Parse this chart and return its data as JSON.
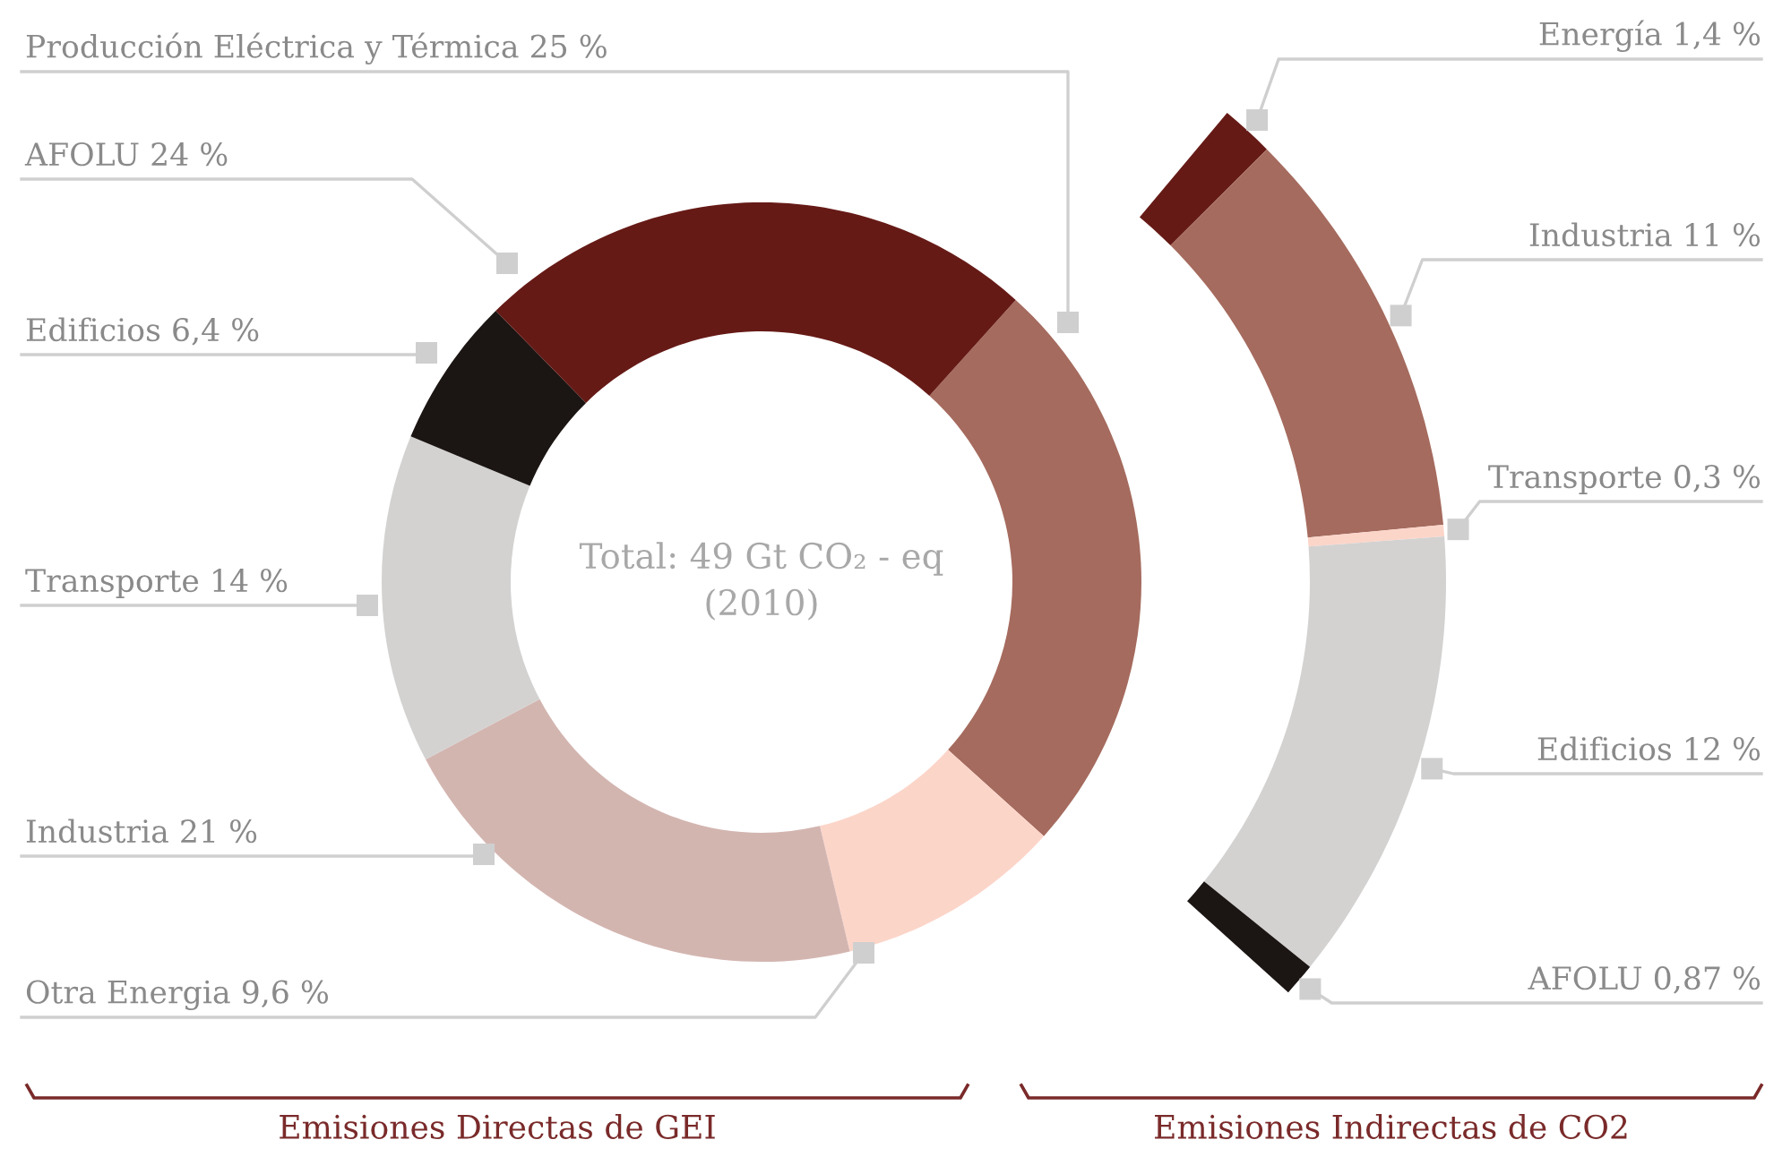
{
  "chart_data": [
    {
      "type": "donut",
      "xlabel": "Emisiones Directas de GEI",
      "annotations": [
        "Total: 49 Gt CO₂ - eq",
        "(2010)"
      ],
      "categories": [
        "Producción Eléctrica y Térmica",
        "Otra Energia",
        "Industria",
        "Transporte",
        "Edificios",
        "AFOLU"
      ],
      "values": [
        25,
        9.6,
        21,
        14,
        6.4,
        24
      ],
      "value_labels": [
        "25 %",
        "9,6 %",
        "21 %",
        "14 %",
        "6,4 %",
        "24 %"
      ],
      "colors": [
        "#a56b5e",
        "#fcd5c9",
        "#d3b5b0",
        "#d3d2d1",
        "#1b1513",
        "#661a16"
      ]
    },
    {
      "type": "donut",
      "xlabel": "Emisiones Indirectas de CO2",
      "categories": [
        "Energía",
        "Industria",
        "Transporte",
        "Edificios",
        "AFOLU"
      ],
      "values": [
        1.4,
        11,
        0.3,
        12,
        0.87
      ],
      "value_labels": [
        "1,4 %",
        "11 %",
        "0,3 %",
        "12 %",
        "0,87 %"
      ],
      "colors": [
        "#661a16",
        "#a56b5e",
        "#fcd5c9",
        "#d3d2d1",
        "#1b1513"
      ]
    }
  ]
}
